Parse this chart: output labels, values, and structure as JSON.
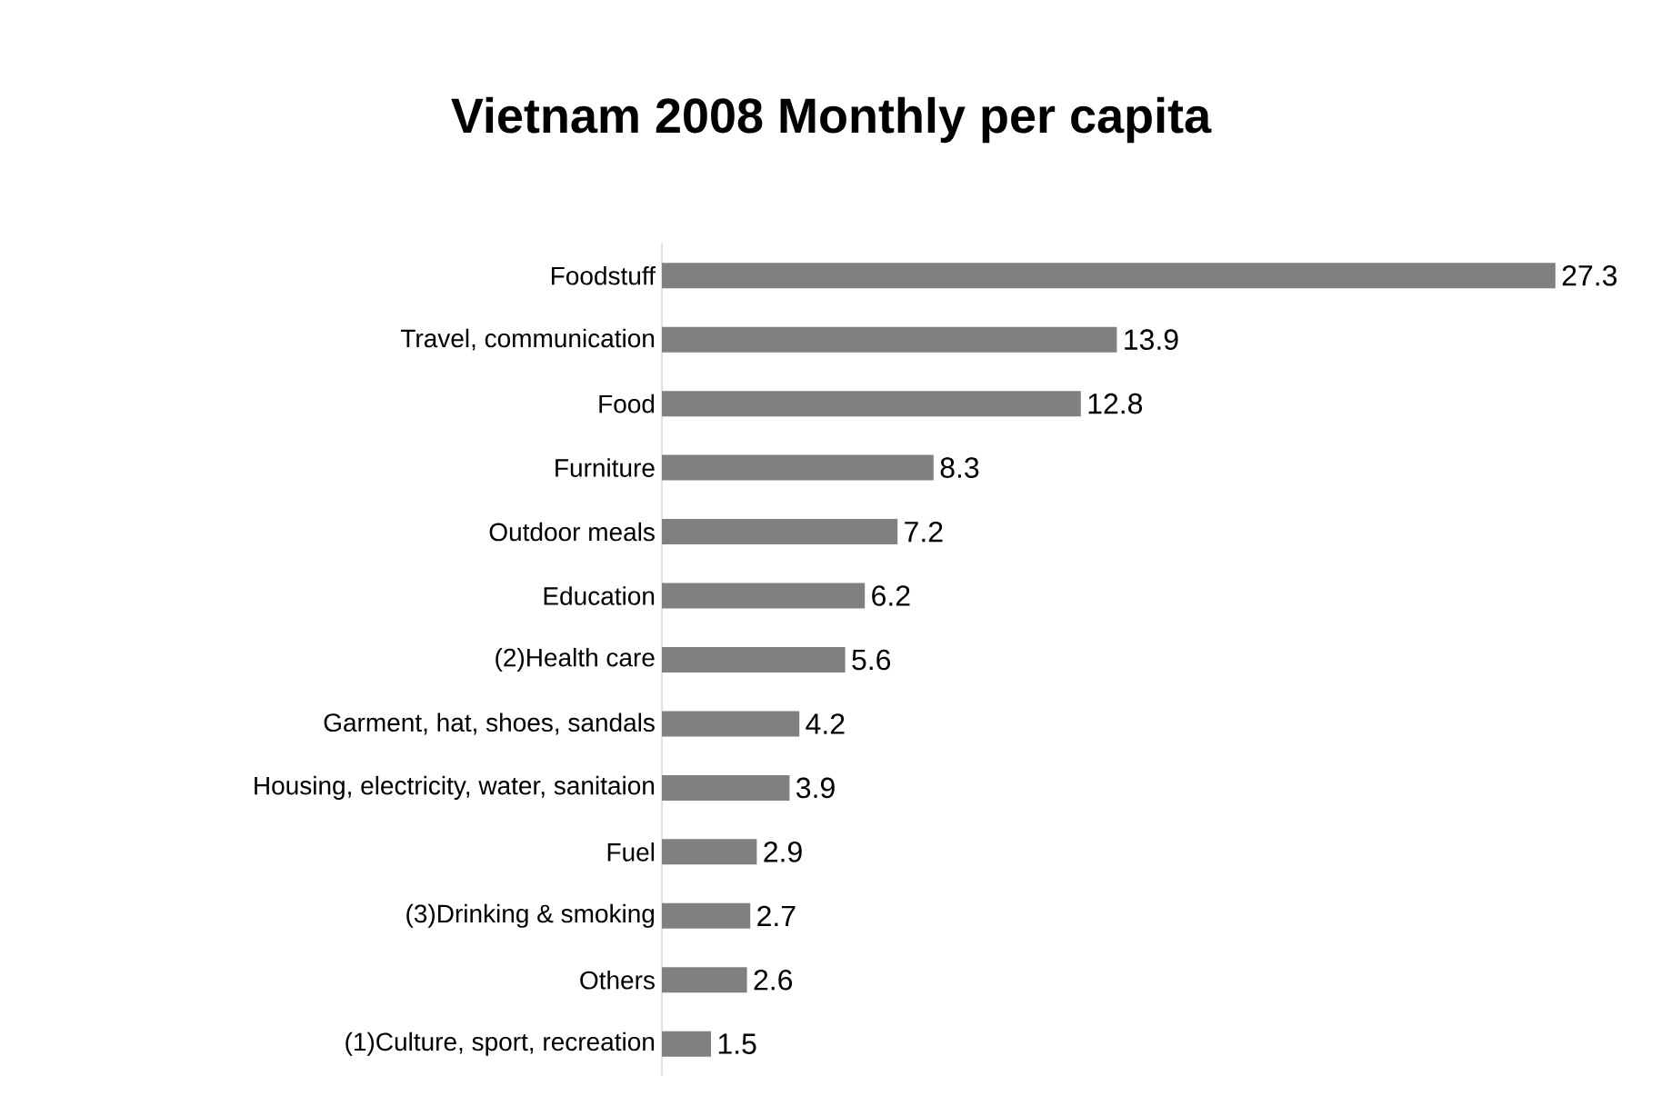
{
  "chart_data": {
    "type": "bar",
    "orientation": "horizontal",
    "title": "Vietnam 2008 Monthly per capita",
    "categories": [
      "Foodstuff",
      "Travel, communication",
      "Food",
      "Furniture",
      "Outdoor meals",
      "Education",
      "(2)Health care",
      "Garment, hat, shoes, sandals",
      "Housing, electricity, water, sanitaion",
      "Fuel",
      "(3)Drinking & smoking",
      "Others",
      "(1)Culture, sport, recreation"
    ],
    "values": [
      27.3,
      13.9,
      12.8,
      8.3,
      7.2,
      6.2,
      5.6,
      4.2,
      3.9,
      2.9,
      2.7,
      2.6,
      1.5
    ],
    "color": "#808080",
    "data_labels": true,
    "tick_labels": "y"
  }
}
